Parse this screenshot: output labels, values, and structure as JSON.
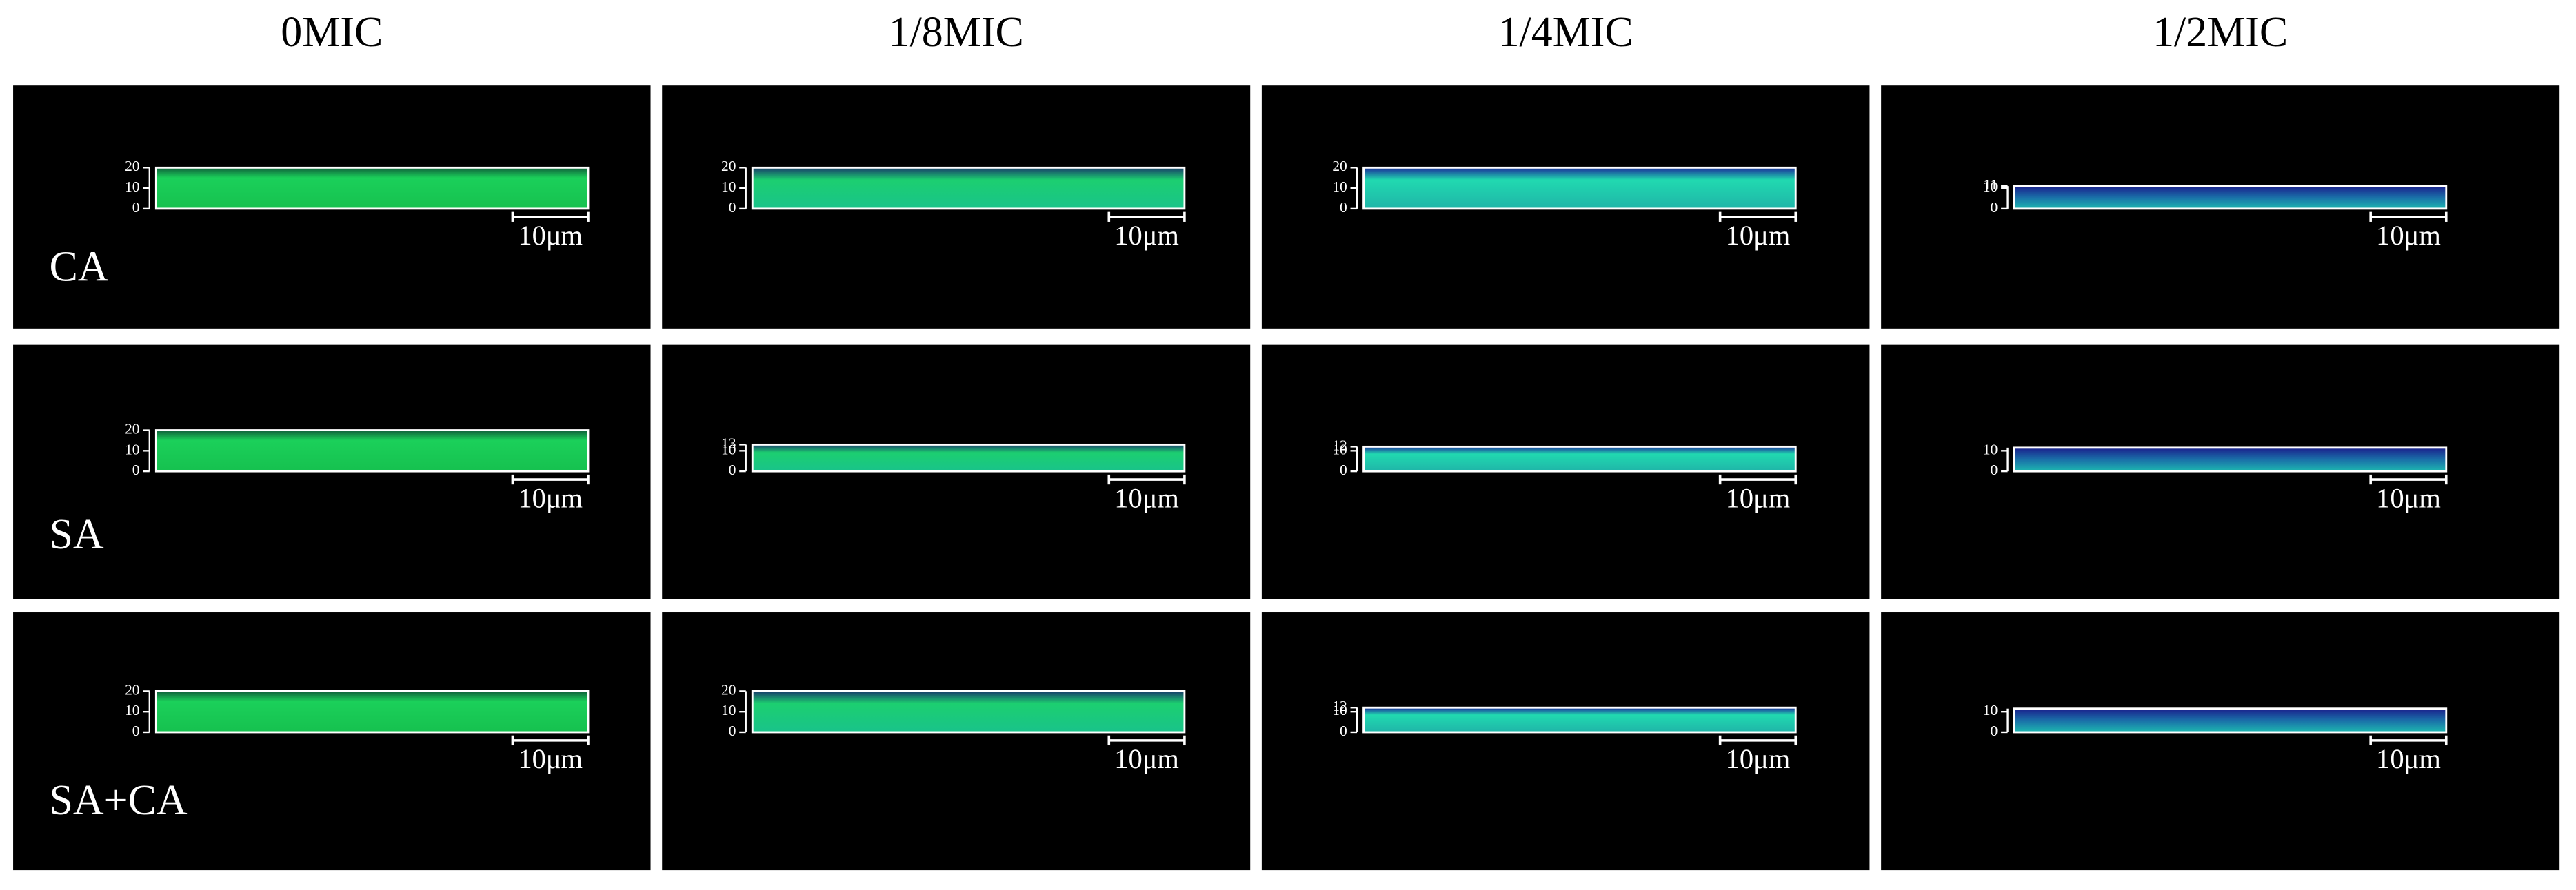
{
  "columns": [
    "0MIC",
    "1/8MIC",
    "1/4MIC",
    "1/2MIC"
  ],
  "rows": [
    {
      "label": "CA",
      "panels": [
        {
          "z_ticks": [
            20,
            10,
            0
          ],
          "scale_bar": "10μm"
        },
        {
          "z_ticks": [
            20,
            10,
            0
          ],
          "scale_bar": "10μm"
        },
        {
          "z_ticks": [
            20,
            10,
            0
          ],
          "scale_bar": "10μm"
        },
        {
          "z_ticks": [
            11,
            10,
            0
          ],
          "scale_bar": "10μm"
        }
      ]
    },
    {
      "label": "SA",
      "panels": [
        {
          "z_ticks": [
            20,
            10,
            0
          ],
          "scale_bar": "10μm"
        },
        {
          "z_ticks": [
            13,
            10,
            0
          ],
          "scale_bar": "10μm"
        },
        {
          "z_ticks": [
            12,
            10,
            0
          ],
          "scale_bar": "10μm"
        },
        {
          "z_ticks": [
            10,
            0
          ],
          "scale_bar": "10μm"
        }
      ]
    },
    {
      "label": "SA+CA",
      "panels": [
        {
          "z_ticks": [
            20,
            10,
            0
          ],
          "scale_bar": "10μm"
        },
        {
          "z_ticks": [
            20,
            10,
            0
          ],
          "scale_bar": "10μm"
        },
        {
          "z_ticks": [
            12,
            10,
            0
          ],
          "scale_bar": "10μm"
        },
        {
          "z_ticks": [
            10,
            0
          ],
          "scale_bar": "10μm"
        }
      ]
    }
  ]
}
